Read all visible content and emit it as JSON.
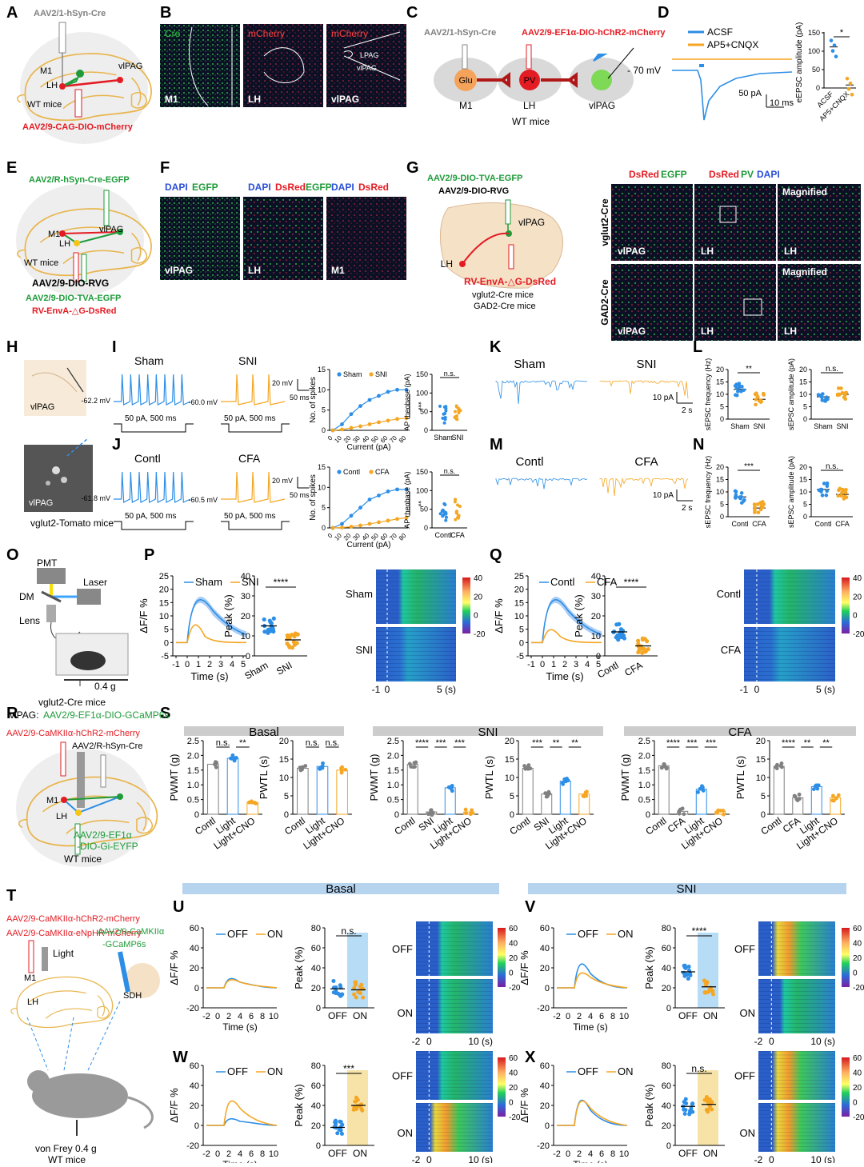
{
  "panel_letters": [
    "A",
    "B",
    "C",
    "D",
    "E",
    "F",
    "G",
    "H",
    "I",
    "J",
    "K",
    "L",
    "M",
    "N",
    "O",
    "P",
    "Q",
    "R",
    "S",
    "T",
    "U",
    "V",
    "W",
    "X"
  ],
  "colors": {
    "blue": "#2c8ee6",
    "orange": "#f5a623",
    "red": "#e31b23",
    "green": "#1f9b3a",
    "gray": "#808080",
    "brain": "#e8b54e",
    "mic_bg": "#0b1024"
  },
  "A": {
    "virus_top": "AAV2/1-hSyn-Cre",
    "region_m1": "M1",
    "region_lh": "LH",
    "region_vlpag": "vlPAG",
    "mice": "WT mice",
    "virus_bottom": "AAV2/9-CAG-DIO-mCherry"
  },
  "B": {
    "img1_label": "Cre",
    "img1_region": "M1",
    "img2_label": "mCherry",
    "img2_region": "LH",
    "img3_label": "mCherry",
    "img3_region": "vlPAG",
    "img3_sub1": "LPAG",
    "img3_sub2": "vlPAG"
  },
  "C": {
    "virus_left": "AAV2/1-hSyn-Cre",
    "virus_right": "AAV2/9-EF1α-DIO-hChR2-mCherry",
    "glu": "Glu",
    "pv": "PV",
    "m1": "M1",
    "lh": "LH",
    "vlpag": "vlPAG",
    "mice": "WT mice"
  },
  "D": {
    "legend1": "ACSF",
    "legend2": "AP5+CNQX",
    "vhold": "- 70 mV",
    "scale_y": "50 pA",
    "scale_x": "10 ms",
    "ylabel": "eEPSC amplitude (pA)",
    "sig": "*",
    "ticks": [
      "0",
      "50",
      "100",
      "150"
    ],
    "cats": [
      "ACSF",
      "AP5+CNQX"
    ]
  },
  "E": {
    "virus1": "AAV2/R-hSyn-Cre-EGFP",
    "m1": "M1",
    "lh": "LH",
    "vlpag": "vlPAG",
    "mice": "WT mice",
    "virus2": "AAV2/9-DIO-RVG",
    "virus3": "AAV2/9-DIO-TVA-EGFP",
    "virus4": "RV-EnvA-△G-DsRed"
  },
  "F": {
    "img1_a": "DAPI",
    "img1_b": "EGFP",
    "img1_region": "vlPAG",
    "img2_a": "DAPI",
    "img2_b": "DsRed",
    "img2_c": "EGFP",
    "img2_region": "LH",
    "img3_a": "DAPI",
    "img3_b": "DsRed",
    "img3_region": "M1"
  },
  "G": {
    "virus1": "AAV2/9-DIO-TVA-EGFP",
    "virus2": "AAV2/9-DIO-RVG",
    "vlpag": "vlPAG",
    "lh": "LH",
    "virus3": "RV-EnvA-△G-DsRed",
    "mice1": "vglut2-Cre mice",
    "mice2": "GAD2-Cre mice",
    "col1_a": "DsRed",
    "col1_b": "EGFP",
    "col2_a": "DsRed",
    "col2_b": "PV",
    "col2_c": "DAPI",
    "magnified": "Magnified",
    "row1": "vglut2-Cre",
    "row2": "GAD2-Cre",
    "r_vlpag": "vlPAG",
    "r_lh": "LH"
  },
  "H": {
    "region": "vlPAG",
    "mice": "vglut2-Tomato mice"
  },
  "I": {
    "g1": "Sham",
    "g2": "SNI",
    "v1": "-62.2 mV",
    "v2": "-60.0 mV",
    "step": "50 pA, 500 ms",
    "scale": "20 mV",
    "scale_t": "50 ms",
    "ylabel": "No. of spikes",
    "xlabel": "Current (pA)",
    "ylabel2": "AP rheobase (pA)",
    "sig": "***",
    "ns": "n.s."
  },
  "J": {
    "g1": "Contl",
    "g2": "CFA",
    "v1": "-61.8 mV",
    "v2": "-60.5 mV",
    "step": "50 pA, 500 ms",
    "scale": "20 mV",
    "scale_t": "50 ms",
    "ylabel": "No. of spikes",
    "xlabel": "Current (pA)",
    "ylabel2": "AP rheobase (pA)",
    "sig": "**",
    "ns": "n.s."
  },
  "spike_ticks_x": [
    "0",
    "10",
    "20",
    "30",
    "40",
    "50",
    "60",
    "70",
    "80"
  ],
  "spike_ticks_y": [
    "0",
    "5",
    "10",
    "15"
  ],
  "rheo_ticks": [
    "0",
    "50",
    "100",
    "150"
  ],
  "K": {
    "g1": "Sham",
    "g2": "SNI",
    "scale_y": "10 pA",
    "scale_x": "2 s"
  },
  "L": {
    "ylabel1": "sEPSC frequency (Hz)",
    "ylabel2": "sEPSC amplitude (pA)",
    "sig": "**",
    "ns": "n.s.",
    "cats": [
      "Sham",
      "SNI"
    ],
    "ticks1": [
      "0",
      "5",
      "10",
      "15",
      "20"
    ],
    "ticks2": [
      "0",
      "5",
      "10",
      "15",
      "20"
    ]
  },
  "M": {
    "g1": "Contl",
    "g2": "CFA",
    "scale_y": "10 pA",
    "scale_x": "2 s"
  },
  "N": {
    "ylabel1": "sEPSC frequency (Hz)",
    "ylabel2": "sEPSC amplitude (pA)",
    "sig": "***",
    "ns": "n.s.",
    "cats": [
      "Contl",
      "CFA"
    ],
    "ticks1": [
      "0",
      "5",
      "10",
      "15",
      "20"
    ],
    "ticks2": [
      "0",
      "5",
      "10",
      "15",
      "20"
    ]
  },
  "O": {
    "pmt": "PMT",
    "laser": "Laser",
    "dm": "DM",
    "lens": "Lens",
    "force": "0.4 g",
    "mice": "vglut2-Cre mice",
    "virus_prefix": "vlPAG: ",
    "virus": "AAV2/9-EF1α-DIO-GCaMP6s"
  },
  "P": {
    "ylabel": "ΔF/F %",
    "xlabel": "Time (s)",
    "leg1": "Sham",
    "leg2": "SNI",
    "yticks": [
      "-5",
      "0",
      "5",
      "10",
      "15",
      "20",
      "25"
    ],
    "xticks": [
      "-1",
      "0",
      "1",
      "2",
      "3",
      "4",
      "5"
    ],
    "peak_label": "Peak (%)",
    "peak_ticks": [
      "0",
      "10",
      "20",
      "30",
      "40"
    ],
    "cats": [
      "Sham",
      "SNI"
    ],
    "sig": "****",
    "hm_row1": "Sham",
    "hm_row2": "SNI",
    "hm_x1": "-1",
    "hm_x2": "0",
    "hm_x3": "5 (s)",
    "cb_ticks": [
      "40",
      "20",
      "0",
      "-20"
    ]
  },
  "Q": {
    "ylabel": "ΔF/F %",
    "xlabel": "Time (s)",
    "leg1": "Contl",
    "leg2": "CFA",
    "yticks": [
      "-5",
      "0",
      "5",
      "10",
      "15",
      "20",
      "25"
    ],
    "xticks": [
      "-1",
      "0",
      "1",
      "2",
      "3",
      "4",
      "5"
    ],
    "peak_label": "Peak (%)",
    "peak_ticks": [
      "0",
      "10",
      "20",
      "30",
      "40"
    ],
    "cats": [
      "Contl",
      "CFA"
    ],
    "sig": "****",
    "hm_row1": "Contl",
    "hm_row2": "CFA",
    "hm_x1": "-1",
    "hm_x2": "0",
    "hm_x3": "5 (s)",
    "cb_ticks": [
      "40",
      "20",
      "0",
      "-20"
    ]
  },
  "R": {
    "virus1": "AAV2/9-CaMKIIα-hChR2-mCherry",
    "virus2": "AAV2/R-hSyn-Cre",
    "m1": "M1",
    "lh": "LH",
    "virus3a": "AAV2/9-EF1α",
    "virus3b": "-DIO-Gi-EYFP",
    "mice": "WT mice"
  },
  "S": {
    "basal": "Basal",
    "sni": "SNI",
    "cfa": "CFA",
    "pwmt": "PWMT (g)",
    "pwtl": "PWTL (s)",
    "pwmt_ticks": [
      "0",
      "0.5",
      "1.0",
      "1.5",
      "2.0",
      "2.5"
    ],
    "pwtl_ticks": [
      "0",
      "5",
      "10",
      "15",
      "20"
    ],
    "cats_basal": [
      "Contl",
      "Light",
      "Light+CNO"
    ],
    "cats_sni": [
      "Contl",
      "SNI",
      "Light",
      "Light+CNO"
    ],
    "cats_cfa": [
      "Contl",
      "CFA",
      "Light",
      "Light+CNO"
    ],
    "ns": "n.s.",
    "s2": "**",
    "s3": "***",
    "s4": "****"
  },
  "T": {
    "virus1": "AAV2/9-CaMKIIα-hChR2-mCherry",
    "virus2": "AAV2/9-CaMKIIα-eNpHR-mCherry",
    "light": "Light",
    "m1": "M1",
    "lh": "LH",
    "virus3a": "AAV2/9-CaMKIIα",
    "virus3b": "-GCaMP6s",
    "sdh": "SDH",
    "force": "von Frey 0.4 g",
    "mice": "WT mice"
  },
  "UVWX": {
    "basal": "Basal",
    "sni": "SNI",
    "ylabel": "ΔF/F %",
    "xlabel": "Time (s)",
    "off": "OFF",
    "on": "ON",
    "yticks": [
      "-20",
      "0",
      "20",
      "40",
      "60"
    ],
    "xticks": [
      "-2",
      "0",
      "2",
      "4",
      "6",
      "8",
      "10"
    ],
    "peak": "Peak (%)",
    "peak_ticks": [
      "0",
      "20",
      "40",
      "60",
      "80"
    ],
    "hm_x1": "-2",
    "hm_x2": "0",
    "hm_x3": "10 (s)",
    "cb_ticks": [
      "60",
      "40",
      "20",
      "0",
      "-20"
    ],
    "sig_u": "n.s.",
    "sig_v": "****",
    "sig_w": "***",
    "sig_x": "n.s."
  },
  "chart_data": [
    {
      "type": "scatter",
      "panel": "D",
      "categories": [
        "ACSF",
        "AP5+CNQX"
      ],
      "values": [
        110,
        8
      ],
      "ylabel": "eEPSC amplitude (pA)",
      "ylim": [
        0,
        150
      ]
    },
    {
      "type": "line",
      "panel": "I",
      "x": [
        0,
        10,
        20,
        30,
        40,
        50,
        60,
        70,
        80
      ],
      "series": [
        {
          "name": "Sham",
          "values": [
            0,
            1.5,
            4,
            6,
            7.5,
            8.5,
            9.5,
            10,
            10
          ]
        },
        {
          "name": "SNI",
          "values": [
            0,
            0.2,
            0.6,
            1,
            1.5,
            2,
            2.4,
            2.8,
            3
          ]
        }
      ],
      "xlabel": "Current (pA)",
      "ylabel": "No. of spikes",
      "ylim": [
        0,
        15
      ]
    },
    {
      "type": "line",
      "panel": "J",
      "x": [
        0,
        10,
        20,
        30,
        40,
        50,
        60,
        70,
        80
      ],
      "series": [
        {
          "name": "Contl",
          "values": [
            0,
            1,
            3,
            5,
            7,
            8,
            9,
            9.5,
            9.5
          ]
        },
        {
          "name": "CFA",
          "values": [
            0,
            0.1,
            0.3,
            0.6,
            1,
            1.4,
            1.8,
            2.2,
            2.5
          ]
        }
      ],
      "xlabel": "Current (pA)",
      "ylabel": "No. of spikes",
      "ylim": [
        0,
        15
      ]
    },
    {
      "type": "scatter",
      "panel": "L",
      "categories": [
        "Sham",
        "SNI"
      ],
      "values": [
        12,
        8
      ],
      "ylabel": "sEPSC frequency (Hz)",
      "ylim": [
        0,
        20
      ]
    },
    {
      "type": "scatter",
      "panel": "N",
      "categories": [
        "Contl",
        "CFA"
      ],
      "values": [
        8,
        3.5
      ],
      "ylabel": "sEPSC frequency (Hz)",
      "ylim": [
        0,
        20
      ]
    },
    {
      "type": "scatter",
      "panel": "P",
      "categories": [
        "Sham",
        "SNI"
      ],
      "values": [
        15,
        8
      ],
      "ylabel": "Peak (%)",
      "ylim": [
        0,
        40
      ]
    },
    {
      "type": "scatter",
      "panel": "Q",
      "categories": [
        "Contl",
        "CFA"
      ],
      "values": [
        12,
        5
      ],
      "ylabel": "Peak (%)",
      "ylim": [
        0,
        40
      ]
    },
    {
      "type": "bar",
      "panel": "S",
      "categories": [
        "Contl",
        "Light",
        "Light+CNO"
      ],
      "values": [
        1.7,
        1.9,
        0.4
      ],
      "ylabel": "PWMT (g)",
      "ylim": [
        0,
        2.5
      ]
    },
    {
      "type": "scatter",
      "panel": "U",
      "categories": [
        "OFF",
        "ON"
      ],
      "values": [
        19,
        18
      ],
      "ylabel": "Peak (%)",
      "ylim": [
        0,
        80
      ]
    },
    {
      "type": "scatter",
      "panel": "V",
      "categories": [
        "OFF",
        "ON"
      ],
      "values": [
        36,
        21
      ],
      "ylabel": "Peak (%)",
      "ylim": [
        0,
        80
      ]
    },
    {
      "type": "scatter",
      "panel": "W",
      "categories": [
        "OFF",
        "ON"
      ],
      "values": [
        18,
        40
      ],
      "ylabel": "Peak (%)",
      "ylim": [
        0,
        80
      ]
    },
    {
      "type": "scatter",
      "panel": "X",
      "categories": [
        "OFF",
        "ON"
      ],
      "values": [
        39,
        41
      ],
      "ylabel": "Peak (%)",
      "ylim": [
        0,
        80
      ]
    }
  ]
}
